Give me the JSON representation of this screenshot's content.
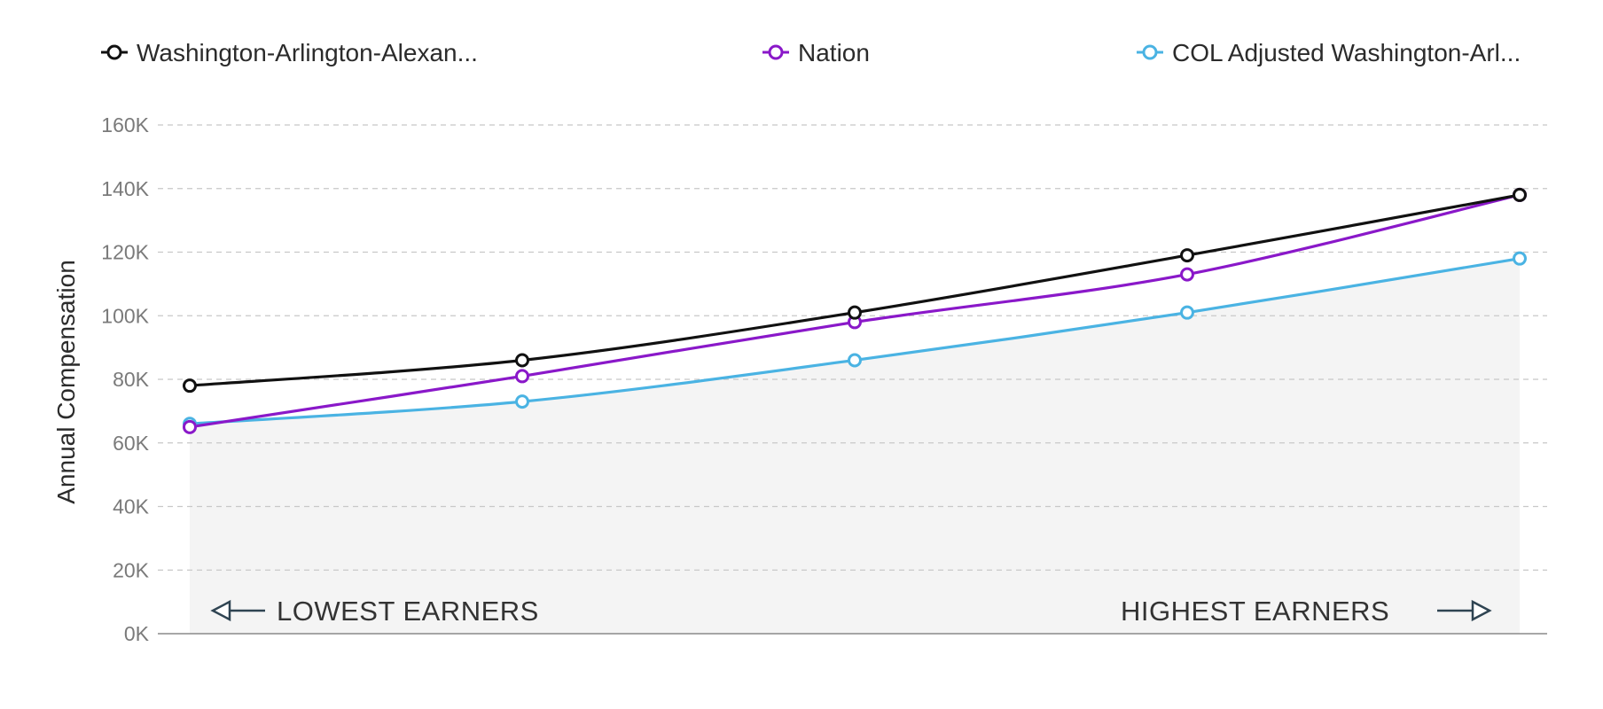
{
  "chart_data": {
    "type": "line",
    "ylabel": "Annual Compensation",
    "ylim": [
      0,
      160000
    ],
    "y_ticks": [
      0,
      20000,
      40000,
      60000,
      80000,
      100000,
      120000,
      140000,
      160000
    ],
    "y_tick_labels": [
      "0K",
      "20K",
      "40K",
      "60K",
      "80K",
      "100K",
      "120K",
      "140K",
      "160K"
    ],
    "x": [
      1,
      2,
      3,
      4,
      5
    ],
    "grid": true,
    "legend_position": "top",
    "series": [
      {
        "name": "Washington-Arlington-Alexan...",
        "color": "#111111",
        "values": [
          78000,
          86000,
          101000,
          119000,
          138000
        ],
        "area": false
      },
      {
        "name": "Nation",
        "color": "#8a18c9",
        "values": [
          65000,
          81000,
          98000,
          113000,
          138000
        ],
        "area": false
      },
      {
        "name": "COL Adjusted Washington-Arl...",
        "color": "#4ab3e3",
        "values": [
          66000,
          73000,
          86000,
          101000,
          118000
        ],
        "area": true,
        "area_color": "#f4f4f4"
      }
    ],
    "annotations": {
      "low": "LOWEST EARNERS",
      "high": "HIGHEST EARNERS"
    }
  }
}
